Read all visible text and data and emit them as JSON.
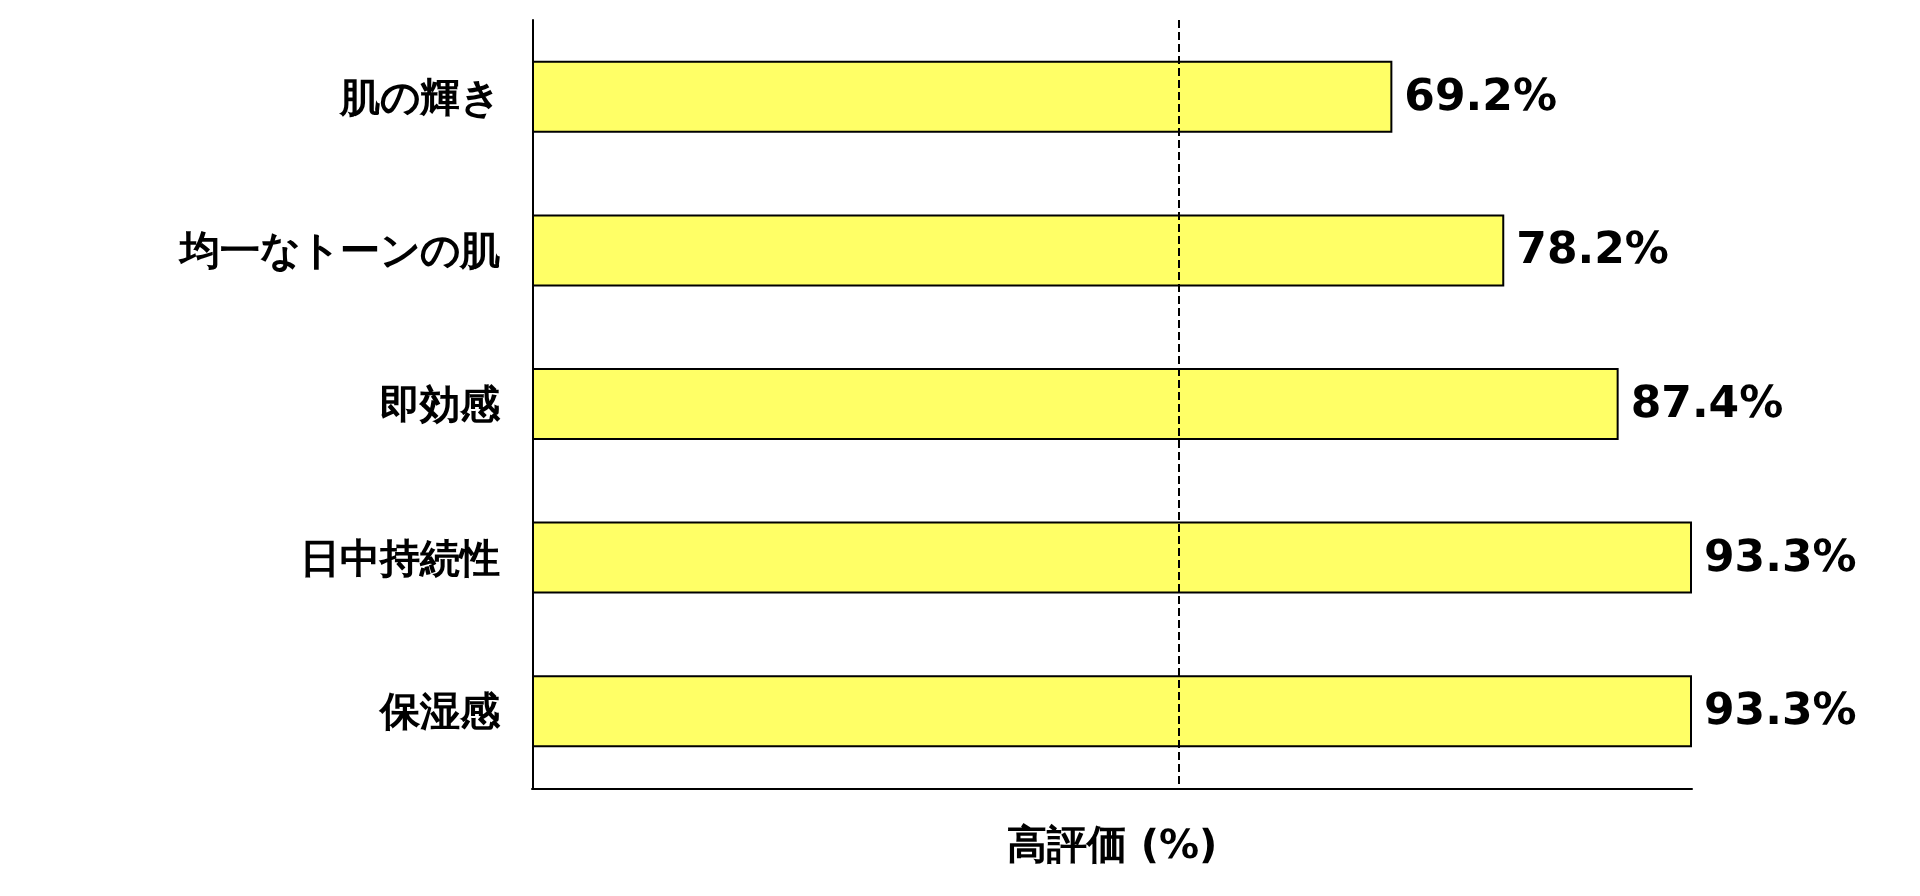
{
  "chart_data": {
    "type": "bar",
    "orientation": "horizontal",
    "xlabel": "高評価 (%)",
    "categories": [
      "肌の輝き",
      "均一なトーンの肌",
      "即効感",
      "日中持続性",
      "保湿感"
    ],
    "values": [
      69.2,
      78.2,
      87.4,
      93.3,
      93.3
    ],
    "color": "#ffff66",
    "value_labels": [
      "69.2%",
      "78.2%",
      "87.4%",
      "93.3%",
      "93.3%"
    ],
    "ref_lines": [
      {
        "axis": "x",
        "value": 52,
        "line_style": "dashed",
        "color": "#000000"
      }
    ],
    "grid": false
  }
}
